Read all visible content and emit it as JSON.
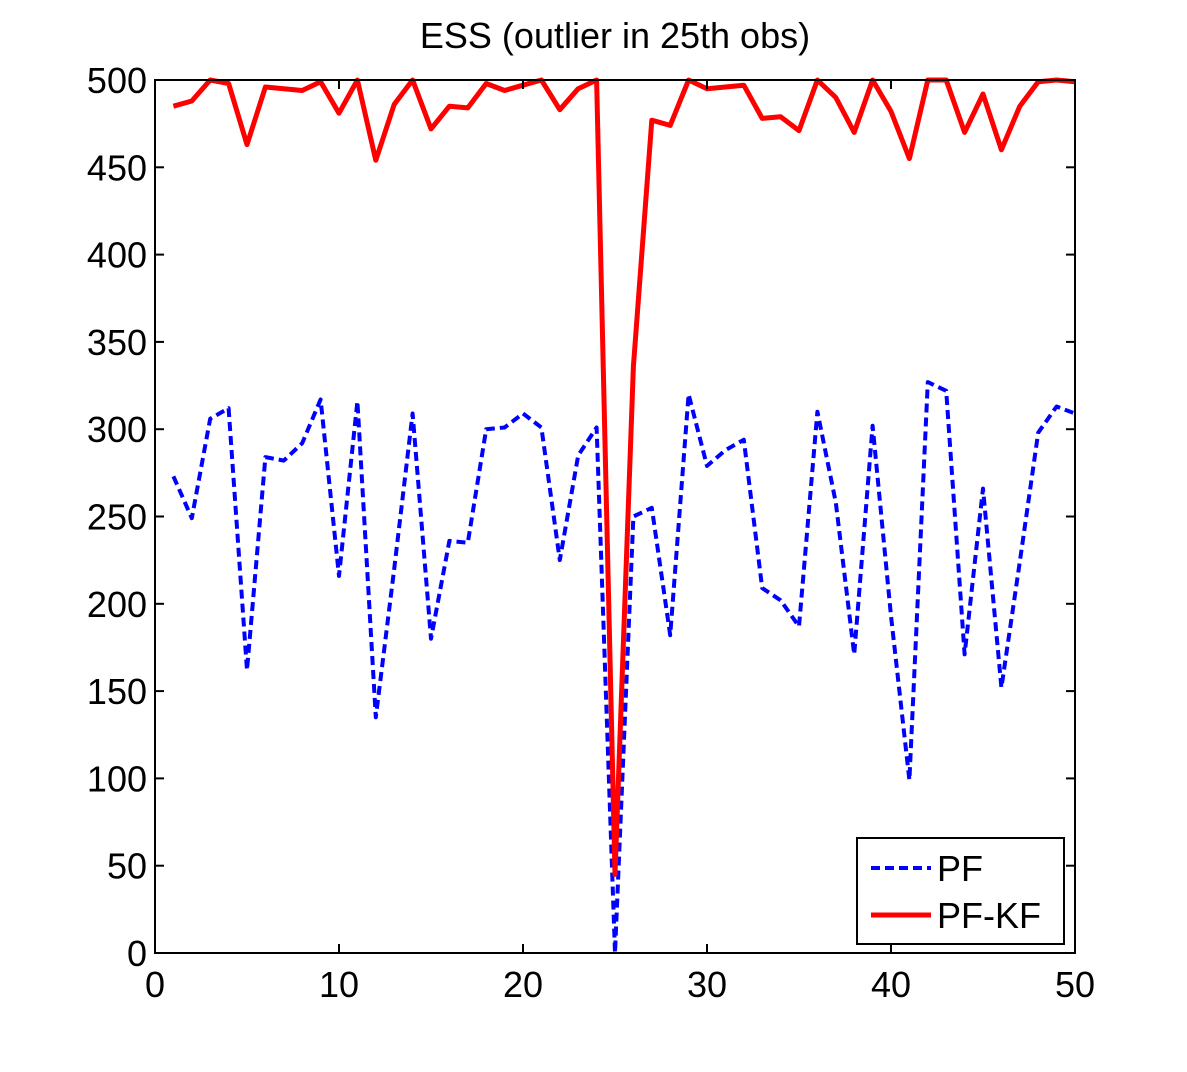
{
  "chart_data": {
    "type": "line",
    "title": "ESS (outlier in 25th obs)",
    "xlabel": "",
    "ylabel": "",
    "xlim": [
      0,
      50
    ],
    "ylim": [
      0,
      500
    ],
    "xticks": [
      0,
      10,
      20,
      30,
      40,
      50
    ],
    "yticks": [
      0,
      50,
      100,
      150,
      200,
      250,
      300,
      350,
      400,
      450,
      500
    ],
    "grid": false,
    "legend_position": "bottom-right",
    "x": [
      1,
      2,
      3,
      4,
      5,
      6,
      7,
      8,
      9,
      10,
      11,
      12,
      13,
      14,
      15,
      16,
      17,
      18,
      19,
      20,
      21,
      22,
      23,
      24,
      25,
      26,
      27,
      28,
      29,
      30,
      31,
      32,
      33,
      34,
      35,
      36,
      37,
      38,
      39,
      40,
      41,
      42,
      43,
      44,
      45,
      46,
      47,
      48,
      49,
      50
    ],
    "series": [
      {
        "name": "PF",
        "color": "#0000ff",
        "style": "dashed",
        "values": [
          273,
          249,
          306,
          312,
          162,
          284,
          282,
          292,
          317,
          216,
          316,
          135,
          220,
          309,
          180,
          236,
          235,
          300,
          301,
          309,
          301,
          225,
          285,
          301,
          0,
          250,
          255,
          182,
          320,
          279,
          288,
          294,
          209,
          202,
          187,
          310,
          258,
          171,
          302,
          193,
          99,
          327,
          322,
          171,
          266,
          152,
          224,
          298,
          313,
          309
        ]
      },
      {
        "name": "PF-KF",
        "color": "#ff0000",
        "style": "solid",
        "values": [
          485,
          488,
          500,
          498,
          463,
          496,
          495,
          494,
          499,
          481,
          500,
          454,
          486,
          500,
          472,
          485,
          484,
          498,
          494,
          497,
          500,
          483,
          495,
          500,
          45,
          336,
          477,
          474,
          500,
          495,
          496,
          497,
          478,
          479,
          471,
          500,
          490,
          470,
          500,
          482,
          455,
          500,
          500,
          470,
          492,
          460,
          485,
          499,
          500,
          499
        ]
      }
    ]
  }
}
